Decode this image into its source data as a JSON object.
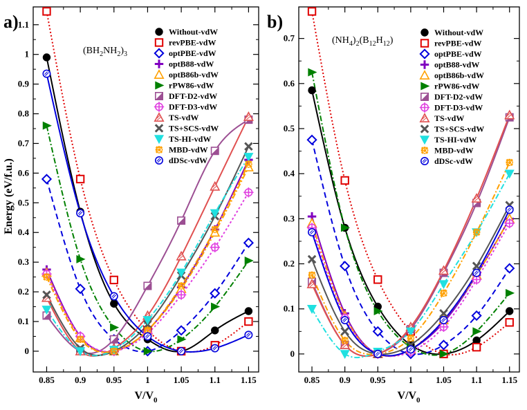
{
  "figure": {
    "panels": [
      {
        "label": "a)",
        "formula_parts": [
          "(BH",
          "2",
          "NH",
          "2",
          ")",
          "3"
        ]
      },
      {
        "label": "b)",
        "formula_parts": [
          "(NH",
          "4",
          ")",
          "2",
          "(B",
          "12",
          "H",
          "12",
          ")"
        ]
      }
    ]
  },
  "chart_data": [
    {
      "type": "line",
      "panel": "a)",
      "title": "(BH2NH2)3",
      "xlabel": "V/V0",
      "ylabel": "Energy (eV/f.u.)",
      "xlim": [
        0.83,
        1.165
      ],
      "ylim": [
        -0.07,
        1.16
      ],
      "xticks": [
        0.85,
        0.9,
        0.95,
        1,
        1.05,
        1.1,
        1.15
      ],
      "xtick_labels": [
        "0.85",
        "0.9",
        "0.95",
        "1",
        "1.05",
        "1.1",
        "1.15"
      ],
      "yticks": [
        0,
        0.1,
        0.2,
        0.3,
        0.4,
        0.5,
        0.6,
        0.7,
        0.8,
        0.9,
        1,
        1.1
      ],
      "ytick_labels": [
        "0",
        "0.1",
        "0.2",
        "0.3",
        "0.4",
        "0.5",
        "0.6",
        "0.7",
        "0.8",
        "0.9",
        "1",
        "1.1"
      ],
      "x": [
        0.85,
        0.9,
        0.95,
        1.0,
        1.05,
        1.1,
        1.15
      ],
      "legend_position": "top-right",
      "series": [
        {
          "name": "Without-vdW",
          "values": [
            0.99,
            0.47,
            0.16,
            0.04,
            0.0,
            0.07,
            0.135
          ]
        },
        {
          "name": "revPBE-vdW",
          "values": [
            1.145,
            0.58,
            0.24,
            0.07,
            0.0,
            0.02,
            0.1
          ]
        },
        {
          "name": "optPBE-vdW",
          "values": [
            0.58,
            0.21,
            0.04,
            0.0,
            0.07,
            0.195,
            0.365
          ]
        },
        {
          "name": "optB88-vdW",
          "values": [
            0.275,
            0.05,
            0.0,
            0.07,
            0.215,
            0.41,
            0.645
          ]
        },
        {
          "name": "optB86b-vdW",
          "values": [
            0.265,
            0.045,
            0.0,
            0.07,
            0.21,
            0.4,
            0.62
          ]
        },
        {
          "name": "rPW86-vdW",
          "values": [
            0.76,
            0.31,
            0.08,
            0.0,
            0.04,
            0.15,
            0.305
          ]
        },
        {
          "name": "DFT-D2-vdW",
          "values": [
            0.12,
            0.0,
            0.04,
            0.22,
            0.44,
            0.675,
            0.78
          ]
        },
        {
          "name": "DFT-D3-vdW",
          "values": [
            0.26,
            0.05,
            0.0,
            0.06,
            0.19,
            0.35,
            0.535
          ]
        },
        {
          "name": "TS-vdW",
          "values": [
            0.18,
            0.0,
            0.01,
            0.12,
            0.32,
            0.555,
            0.79
          ]
        },
        {
          "name": "TS+SCS-vdW",
          "values": [
            0.19,
            0.01,
            0.0,
            0.09,
            0.255,
            0.455,
            0.69
          ]
        },
        {
          "name": "TS-HI-vdW",
          "values": [
            0.14,
            0.0,
            0.005,
            0.105,
            0.265,
            0.465,
            0.655
          ]
        },
        {
          "name": "MBD-vdW",
          "values": [
            0.25,
            0.04,
            0.0,
            0.07,
            0.22,
            0.41,
            0.63
          ]
        },
        {
          "name": "dDSc-vdW",
          "values": [
            0.935,
            0.465,
            0.185,
            0.05,
            0.0,
            0.01,
            0.055
          ]
        }
      ]
    },
    {
      "type": "line",
      "panel": "b)",
      "title": "(NH4)2(B12H12)",
      "xlabel": "V/V0",
      "ylabel": "",
      "xlim": [
        0.83,
        1.165
      ],
      "ylim": [
        -0.04,
        0.77
      ],
      "xticks": [
        0.85,
        0.9,
        0.95,
        1,
        1.05,
        1.1,
        1.15
      ],
      "xtick_labels": [
        "0.85",
        "0.9",
        "0.95",
        "1",
        "1.05",
        "1.1",
        "1.15"
      ],
      "yticks": [
        0,
        0.1,
        0.2,
        0.3,
        0.4,
        0.5,
        0.6,
        0.7
      ],
      "ytick_labels": [
        "0",
        "0.1",
        "0.2",
        "0.3",
        "0.4",
        "0.5",
        "0.6",
        "0.7"
      ],
      "x": [
        0.85,
        0.9,
        0.95,
        1.0,
        1.05,
        1.1,
        1.15
      ],
      "legend_position": "top-right",
      "series": [
        {
          "name": "Without-vdW",
          "values": [
            0.585,
            0.28,
            0.105,
            0.02,
            0.0,
            0.03,
            0.095
          ]
        },
        {
          "name": "revPBE-vdW",
          "values": [
            0.76,
            0.385,
            0.165,
            0.05,
            0.0,
            0.015,
            0.07
          ]
        },
        {
          "name": "optPBE-vdW",
          "values": [
            0.475,
            0.195,
            0.05,
            0.0,
            0.02,
            0.085,
            0.19
          ]
        },
        {
          "name": "optB88-vdW",
          "values": [
            0.305,
            0.09,
            0.0,
            0.01,
            0.07,
            0.175,
            0.3
          ]
        },
        {
          "name": "optB86b-vdW",
          "values": [
            0.29,
            0.085,
            0.0,
            0.01,
            0.075,
            0.175,
            0.3
          ]
        },
        {
          "name": "rPW86-vdW",
          "values": [
            0.625,
            0.28,
            0.095,
            0.015,
            0.0,
            0.05,
            0.135
          ]
        },
        {
          "name": "DFT-D2-vdW",
          "values": [
            0.16,
            0.02,
            0.0,
            0.055,
            0.18,
            0.335,
            0.525
          ]
        },
        {
          "name": "DFT-D3-vdW",
          "values": [
            0.28,
            0.08,
            0.0,
            0.005,
            0.06,
            0.165,
            0.29
          ]
        },
        {
          "name": "TS-vdW",
          "values": [
            0.155,
            0.02,
            0.0,
            0.06,
            0.185,
            0.345,
            0.53
          ]
        },
        {
          "name": "TS+SCS-vdW",
          "values": [
            0.21,
            0.05,
            0.0,
            0.02,
            0.09,
            0.195,
            0.33
          ]
        },
        {
          "name": "TS-HI-vdW",
          "values": [
            0.1,
            0.0,
            0.005,
            0.05,
            0.155,
            0.27,
            0.4
          ]
        },
        {
          "name": "MBD-vdW",
          "values": [
            0.175,
            0.03,
            0.0,
            0.035,
            0.135,
            0.27,
            0.425
          ]
        },
        {
          "name": "dDSc-vdW",
          "values": [
            0.27,
            0.075,
            0.0,
            0.01,
            0.075,
            0.18,
            0.32
          ]
        }
      ]
    }
  ],
  "series_styles": [
    {
      "name": "Without-vdW",
      "color": "#000000",
      "marker": "circle-filled",
      "dash": ""
    },
    {
      "name": "revPBE-vdW",
      "color": "#e00000",
      "marker": "square-open",
      "dash": "2,3"
    },
    {
      "name": "optPBE-vdW",
      "color": "#0000dd",
      "marker": "diamond-open",
      "dash": "8,5"
    },
    {
      "name": "optB88-vdW",
      "color": "#8000c0",
      "marker": "plus",
      "dash": ""
    },
    {
      "name": "optB86b-vdW",
      "color": "#ffa000",
      "marker": "triangle-up-open",
      "dash": "8,3,2,3"
    },
    {
      "name": "rPW86-vdW",
      "color": "#008000",
      "marker": "triangle-right-filled",
      "dash": "8,3,2,3"
    },
    {
      "name": "DFT-D2-vdW",
      "color": "#9c4f93",
      "marker": "square-half",
      "dash": ""
    },
    {
      "name": "DFT-D3-vdW",
      "color": "#e040e0",
      "marker": "circle-plus-open",
      "dash": "3,3"
    },
    {
      "name": "TS-vdW",
      "color": "#e05050",
      "marker": "triangle-up-hatched",
      "dash": ""
    },
    {
      "name": "TS+SCS-vdW",
      "color": "#555555",
      "marker": "x",
      "dash": ""
    },
    {
      "name": "TS-HI-vdW",
      "color": "#20e0e0",
      "marker": "triangle-down-filled",
      "dash": "8,3,2,3"
    },
    {
      "name": "MBD-vdW",
      "color": "#ffa000",
      "marker": "star",
      "dash": "8,3,2,3"
    },
    {
      "name": "dDSc-vdW",
      "color": "#0000dd",
      "marker": "circle-hatched",
      "dash": ""
    }
  ]
}
